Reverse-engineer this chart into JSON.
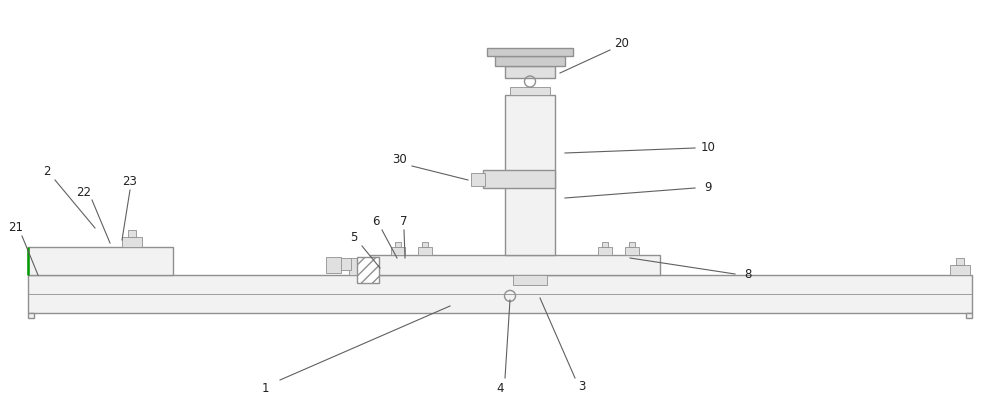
{
  "background_color": "#ffffff",
  "line_color": "#909090",
  "line_color_dark": "#606060",
  "green_color": "#009900",
  "lw": 1.0,
  "lw_thin": 0.6,
  "lw_thick": 1.5,
  "fig_width": 10.0,
  "fig_height": 4.18,
  "dpi": 100,
  "xlim": [
    0,
    10
  ],
  "ylim": [
    0,
    4.18
  ],
  "font_size": 8.5,
  "text_color": "#222222",
  "fc_light": "#f2f2f2",
  "fc_mid": "#e0e0e0",
  "fc_dark": "#cccccc"
}
